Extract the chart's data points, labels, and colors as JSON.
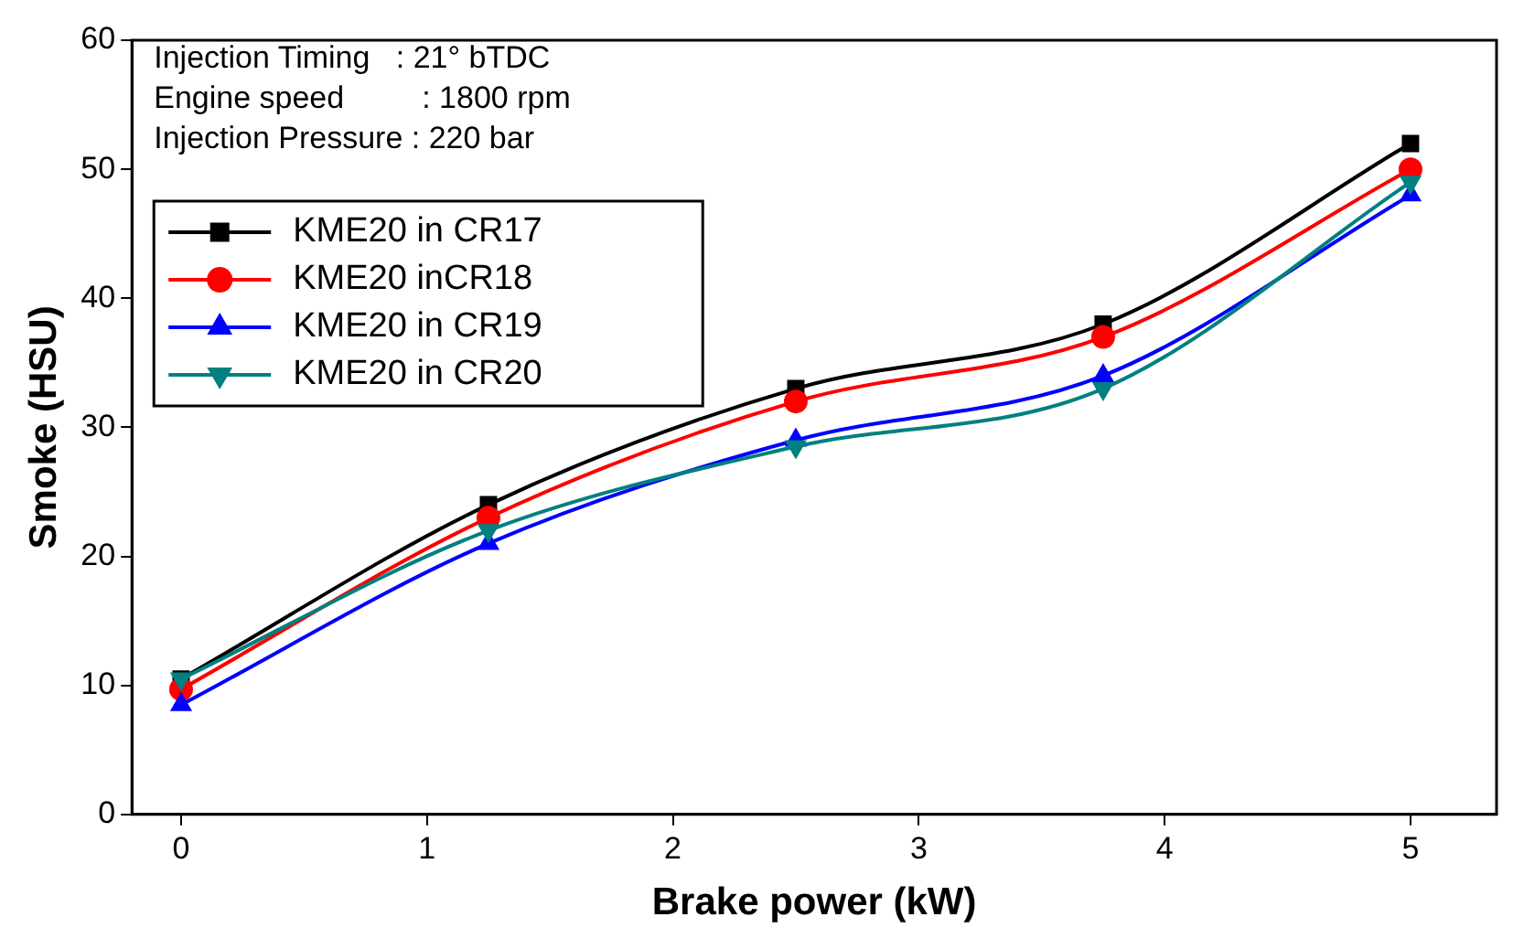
{
  "chart_data": {
    "type": "line",
    "xlabel": "Brake power (kW)",
    "ylabel": "Smoke (HSU)",
    "annotations": [
      "Injection Timing   : 21° bTDC",
      "Engine speed         : 1800 rpm",
      "Injection Pressure : 220 bar"
    ],
    "x": [
      0,
      1.25,
      2.5,
      3.75,
      5
    ],
    "series": [
      {
        "name": "KME20 in CR17",
        "color": "#000000",
        "marker": "square",
        "values": [
          10.5,
          24,
          33,
          38,
          52
        ]
      },
      {
        "name": "KME20 inCR18",
        "color": "#ff0000",
        "marker": "circle",
        "values": [
          9.7,
          23,
          32,
          37,
          50
        ]
      },
      {
        "name": "KME20 in CR19",
        "color": "#0000ff",
        "marker": "triangle",
        "values": [
          8.5,
          21,
          29,
          34,
          48
        ]
      },
      {
        "name": "KME20 in CR20",
        "color": "#008080",
        "marker": "triangle-down",
        "values": [
          10.5,
          22,
          28.5,
          33,
          49
        ]
      }
    ],
    "xlim": [
      -0.2,
      5.35
    ],
    "xticks": [
      0,
      1,
      2,
      3,
      4,
      5
    ],
    "ylim": [
      0,
      60
    ],
    "yticks": [
      0,
      10,
      20,
      30,
      40,
      50,
      60
    ],
    "grid": false,
    "legend": "top left",
    "line_style": "solid"
  }
}
